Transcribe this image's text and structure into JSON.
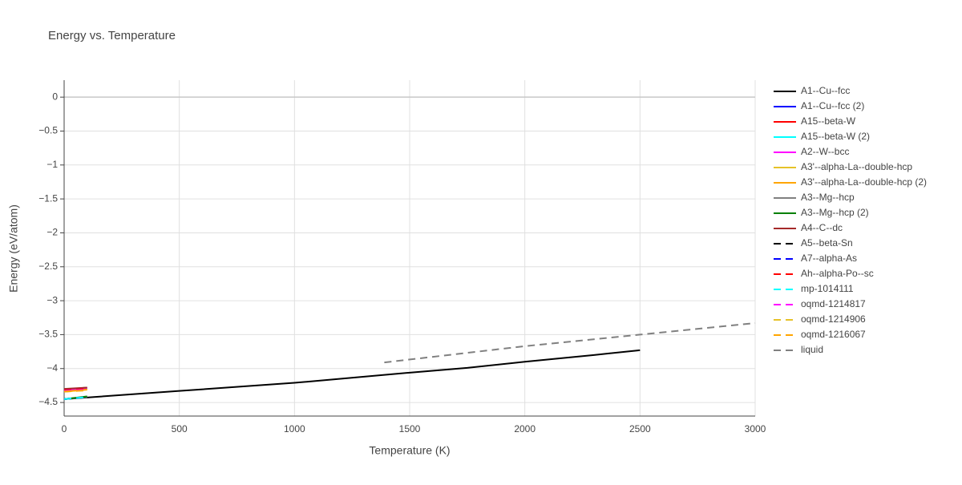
{
  "chart_data": {
    "type": "line",
    "title": "Energy vs. Temperature",
    "x_label": "Temperature (K)",
    "y_label": "Energy (eV/atom)",
    "xlim": [
      0,
      3000
    ],
    "ylim": [
      -4.7,
      0.25
    ],
    "xticks": [
      0,
      500,
      1000,
      1500,
      2000,
      2500,
      3000
    ],
    "yticks": [
      0,
      {
        "value": -0.5,
        "label": "−0.5"
      },
      {
        "value": -1,
        "label": "−1"
      },
      {
        "value": -1.5,
        "label": "−1.5"
      },
      {
        "value": -2,
        "label": "−2"
      },
      {
        "value": -2.5,
        "label": "−2.5"
      },
      {
        "value": -3,
        "label": "−3"
      },
      {
        "value": -3.5,
        "label": "−3.5"
      },
      {
        "value": -4,
        "label": "−4"
      },
      {
        "value": -4.5,
        "label": "−4.5"
      }
    ],
    "grid": true,
    "series": [
      {
        "name": "A1--Cu--fcc",
        "color": "#000000",
        "dash": "solid",
        "x": [
          0,
          500,
          1000,
          1170,
          1500,
          1750,
          2000,
          2300,
          2500
        ],
        "values": [
          -4.45,
          -4.33,
          -4.21,
          -4.16,
          -4.06,
          -3.99,
          -3.9,
          -3.8,
          -3.73
        ]
      },
      {
        "name": "A1--Cu--fcc (2)",
        "color": "#0000ff",
        "dash": "solid",
        "x": [
          0,
          100
        ],
        "values": [
          -4.45,
          -4.42
        ]
      },
      {
        "name": "A15--beta-W",
        "color": "#ff0000",
        "dash": "solid",
        "x": [
          0,
          100
        ],
        "values": [
          -4.31,
          -4.28
        ]
      },
      {
        "name": "A15--beta-W (2)",
        "color": "#00ffff",
        "dash": "solid",
        "x": [
          0,
          100
        ],
        "values": [
          -4.31,
          -4.28
        ]
      },
      {
        "name": "A2--W--bcc",
        "color": "#ff00ff",
        "dash": "solid",
        "x": [
          0,
          100
        ],
        "values": [
          -4.32,
          -4.29
        ]
      },
      {
        "name": "A3'--alpha-La--double-hcp",
        "color": "#e6c229",
        "dash": "solid",
        "x": [
          0,
          100
        ],
        "values": [
          -4.34,
          -4.31
        ]
      },
      {
        "name": "A3'--alpha-La--double-hcp (2)",
        "color": "#ffa500",
        "dash": "solid",
        "x": [
          0,
          100
        ],
        "values": [
          -4.34,
          -4.31
        ]
      },
      {
        "name": "A3--Mg--hcp",
        "color": "#808080",
        "dash": "solid",
        "x": [
          0,
          100
        ],
        "values": [
          -4.45,
          -4.42
        ]
      },
      {
        "name": "A3--Mg--hcp (2)",
        "color": "#008000",
        "dash": "solid",
        "x": [
          0,
          100
        ],
        "values": [
          -4.45,
          -4.41
        ]
      },
      {
        "name": "A4--C--dc",
        "color": "#a52a2a",
        "dash": "solid",
        "x": [
          0,
          100
        ],
        "values": [
          -4.3,
          -4.28
        ]
      },
      {
        "name": "A5--beta-Sn",
        "color": "#000000",
        "dash": "dash",
        "x": [
          0,
          100
        ],
        "values": [
          -4.45,
          -4.42
        ]
      },
      {
        "name": "A7--alpha-As",
        "color": "#0000ff",
        "dash": "dash",
        "x": [
          0,
          100
        ],
        "values": [
          -4.45,
          -4.42
        ]
      },
      {
        "name": "Ah--alpha-Po--sc",
        "color": "#ff0000",
        "dash": "dash",
        "x": [
          0,
          100
        ],
        "values": [
          -4.32,
          -4.3
        ]
      },
      {
        "name": "mp-1014111",
        "color": "#00ffff",
        "dash": "dash",
        "x": [
          0,
          100
        ],
        "values": [
          -4.45,
          -4.42
        ]
      },
      {
        "name": "oqmd-1214817",
        "color": "#ff00ff",
        "dash": "dash",
        "x": [
          0,
          100
        ],
        "values": [
          -4.33,
          -4.31
        ]
      },
      {
        "name": "oqmd-1214906",
        "color": "#e6c229",
        "dash": "dash",
        "x": [
          0,
          100
        ],
        "values": [
          -4.34,
          -4.32
        ]
      },
      {
        "name": "oqmd-1216067",
        "color": "#ffa500",
        "dash": "dash",
        "x": [
          0,
          100
        ],
        "values": [
          -4.34,
          -4.32
        ]
      },
      {
        "name": "liquid",
        "color": "#808080",
        "dash": "dash",
        "x": [
          1390,
          2000,
          2500,
          3000
        ],
        "values": [
          -3.91,
          -3.67,
          -3.5,
          -3.33
        ]
      }
    ]
  }
}
